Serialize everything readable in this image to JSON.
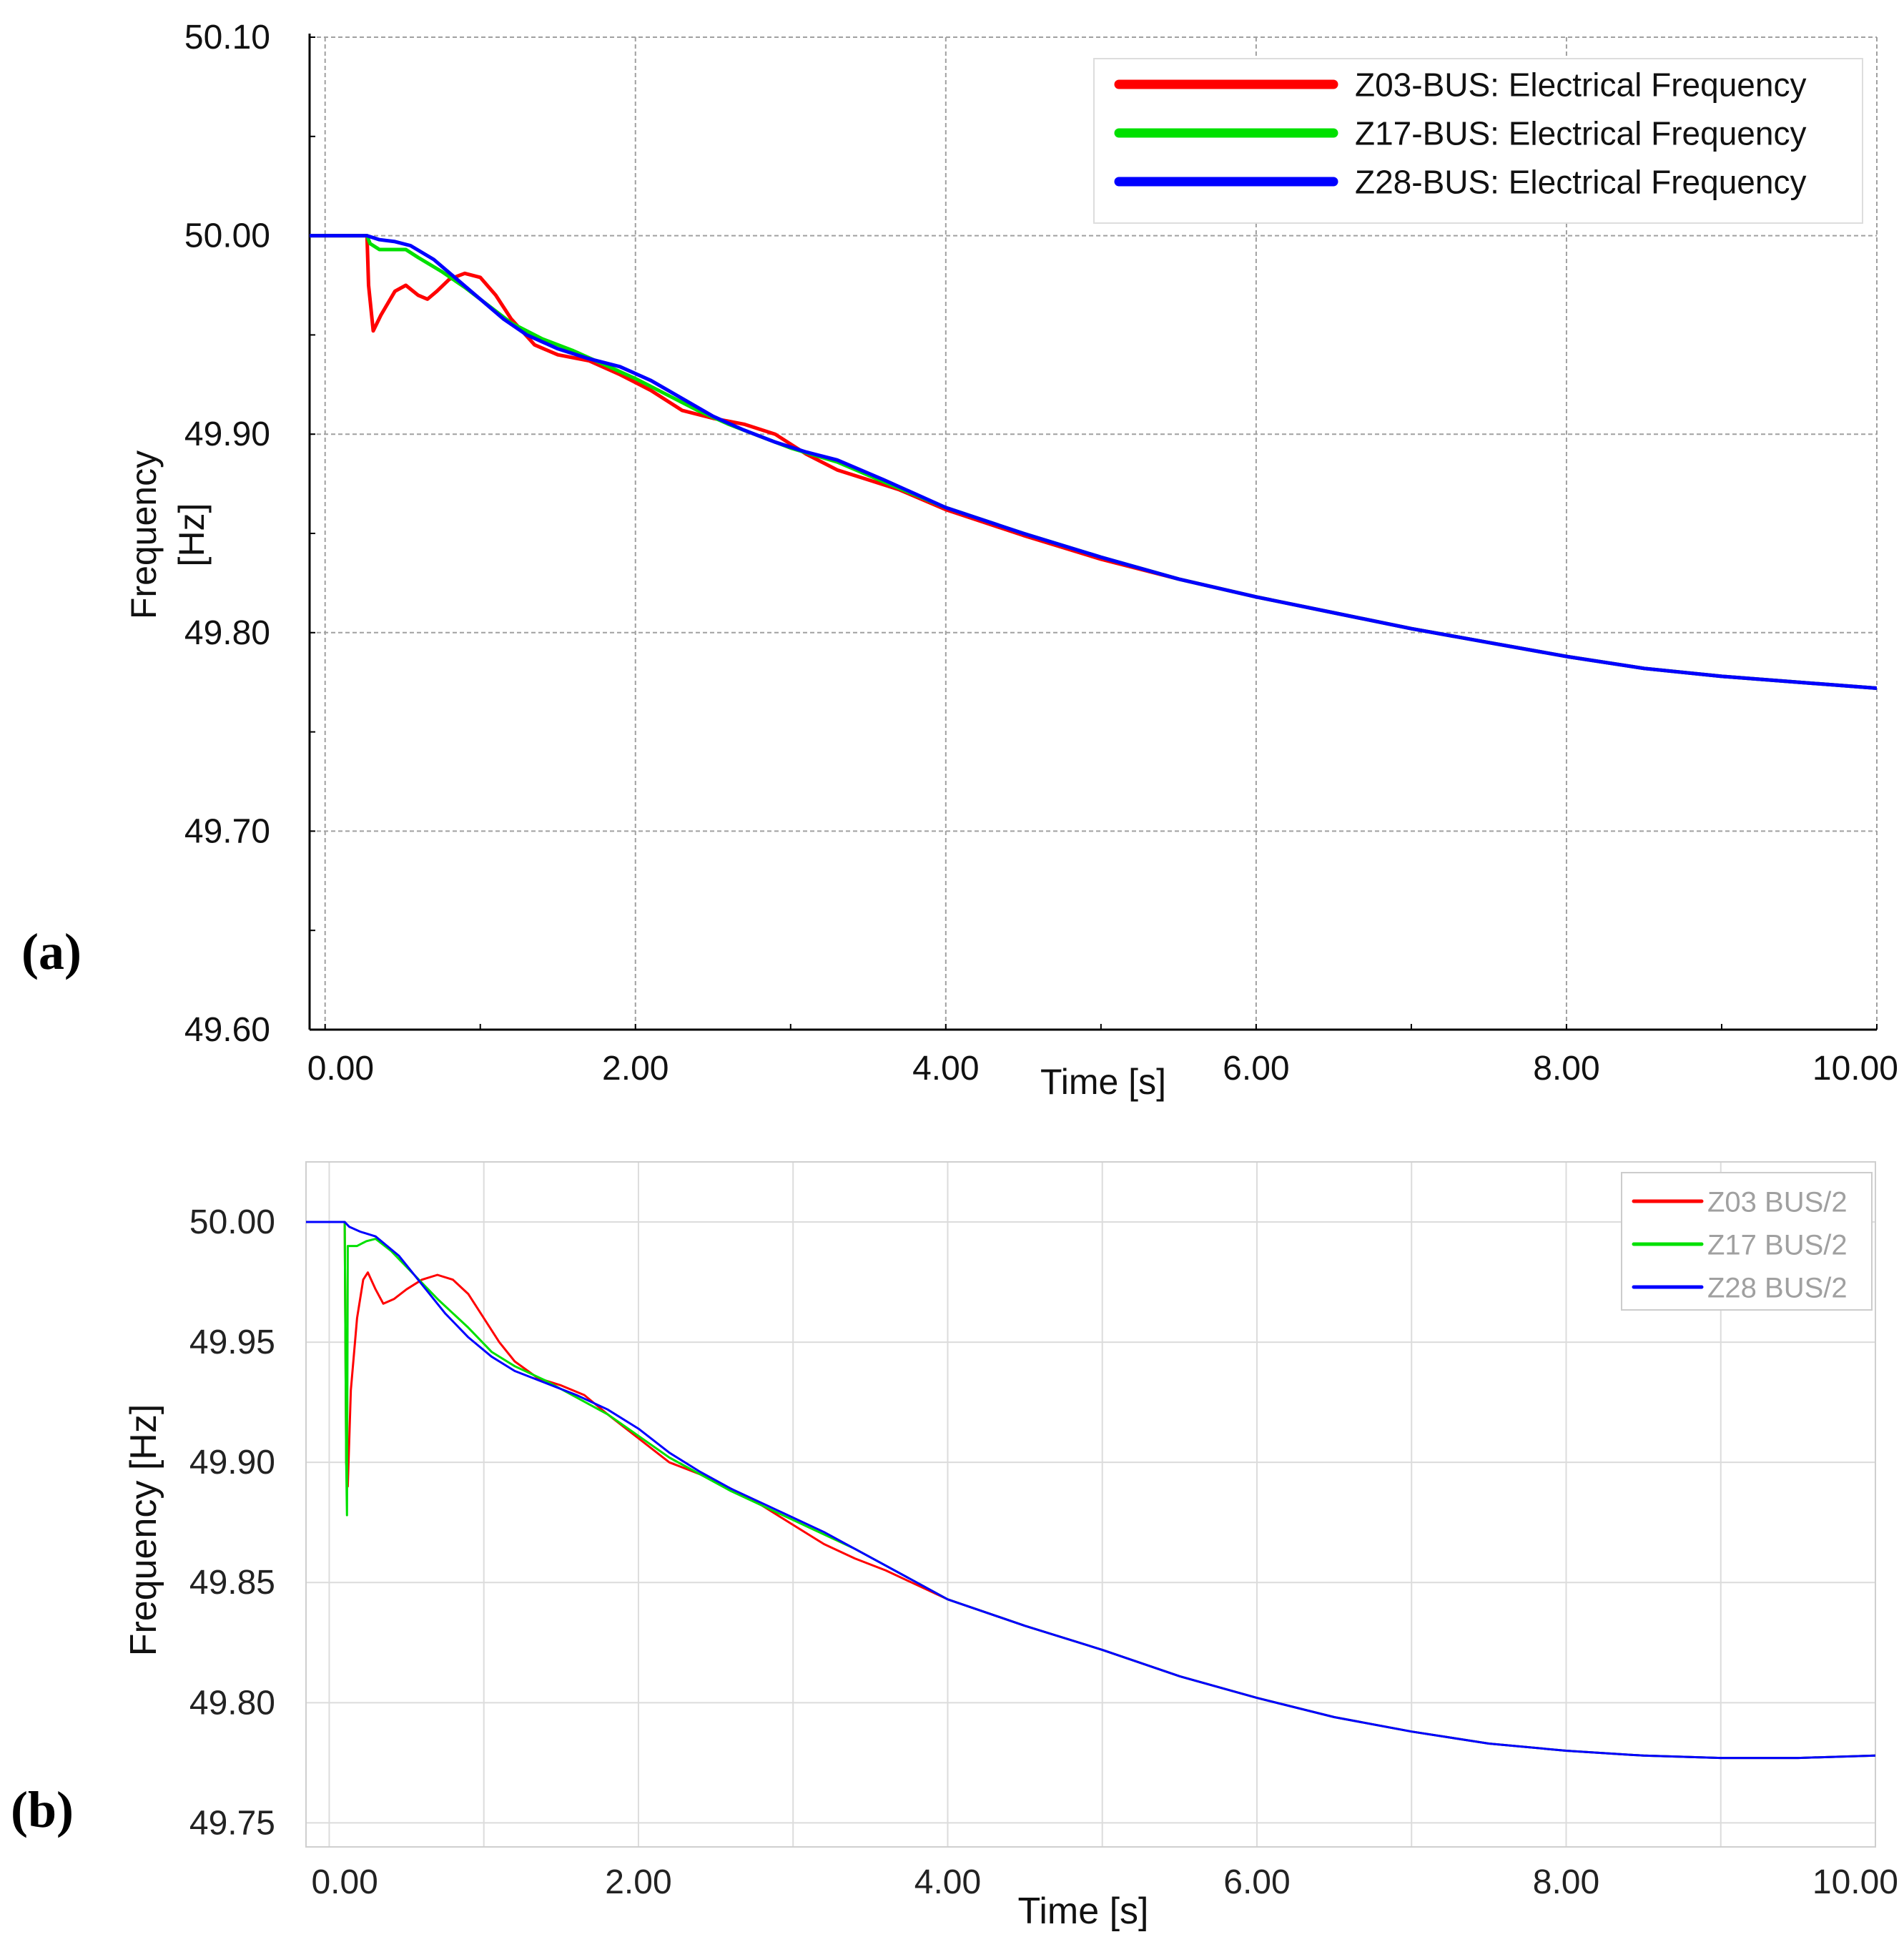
{
  "figure": {
    "panels": [
      "(a)",
      "(b)"
    ]
  },
  "colors": {
    "red": "#ff0000",
    "green": "#00e000",
    "blue": "#0000ff",
    "grid_a": "#a0a0a0",
    "grid_b": "#dcdcdc",
    "axis": "#000000",
    "legend_text_b": "#a0a0a0"
  },
  "chart_data": [
    {
      "id": "a",
      "type": "line",
      "panel_label": "(a)",
      "title": "",
      "xlabel": "Time [s]",
      "ylabel_lines": [
        "Frequency",
        "[Hz]"
      ],
      "xlim": [
        -0.1,
        10.0
      ],
      "ylim": [
        49.6,
        50.1
      ],
      "xticks": [
        0,
        2,
        4,
        6,
        8,
        10
      ],
      "xtick_labels": [
        "0.00",
        "2.00",
        "4.00",
        "6.00",
        "8.00",
        "10.00"
      ],
      "yticks": [
        49.6,
        49.7,
        49.8,
        49.9,
        50.0,
        50.1
      ],
      "ytick_labels": [
        "49.60",
        "49.70",
        "49.80",
        "49.90",
        "50.00",
        "50.10"
      ],
      "grid": true,
      "legend_position": "top-right",
      "series": [
        {
          "name": "Z03-BUS: Electrical Frequency",
          "color_key": "red",
          "points": [
            [
              -0.1,
              50.0
            ],
            [
              0.27,
              50.0
            ],
            [
              0.28,
              49.975
            ],
            [
              0.31,
              49.952
            ],
            [
              0.36,
              49.96
            ],
            [
              0.45,
              49.972
            ],
            [
              0.52,
              49.975
            ],
            [
              0.6,
              49.97
            ],
            [
              0.66,
              49.968
            ],
            [
              0.72,
              49.972
            ],
            [
              0.8,
              49.978
            ],
            [
              0.9,
              49.981
            ],
            [
              1.0,
              49.979
            ],
            [
              1.1,
              49.97
            ],
            [
              1.2,
              49.958
            ],
            [
              1.35,
              49.945
            ],
            [
              1.5,
              49.94
            ],
            [
              1.7,
              49.937
            ],
            [
              1.9,
              49.93
            ],
            [
              2.1,
              49.922
            ],
            [
              2.3,
              49.912
            ],
            [
              2.5,
              49.908
            ],
            [
              2.7,
              49.905
            ],
            [
              2.9,
              49.9
            ],
            [
              3.1,
              49.89
            ],
            [
              3.3,
              49.882
            ],
            [
              3.5,
              49.877
            ],
            [
              3.7,
              49.872
            ],
            [
              4.0,
              49.862
            ],
            [
              4.5,
              49.849
            ],
            [
              5.0,
              49.837
            ],
            [
              5.5,
              49.827
            ],
            [
              6.0,
              49.818
            ],
            [
              6.5,
              49.81
            ],
            [
              7.0,
              49.802
            ],
            [
              7.5,
              49.795
            ],
            [
              8.0,
              49.788
            ],
            [
              8.5,
              49.782
            ],
            [
              9.0,
              49.778
            ],
            [
              9.5,
              49.775
            ],
            [
              10.0,
              49.772
            ]
          ]
        },
        {
          "name": "Z17-BUS: Electrical Frequency",
          "color_key": "green",
          "points": [
            [
              -0.1,
              50.0
            ],
            [
              0.27,
              50.0
            ],
            [
              0.29,
              49.996
            ],
            [
              0.35,
              49.993
            ],
            [
              0.45,
              49.993
            ],
            [
              0.52,
              49.993
            ],
            [
              0.6,
              49.989
            ],
            [
              0.75,
              49.982
            ],
            [
              0.9,
              49.974
            ],
            [
              1.05,
              49.965
            ],
            [
              1.2,
              49.956
            ],
            [
              1.4,
              49.948
            ],
            [
              1.6,
              49.942
            ],
            [
              1.8,
              49.935
            ],
            [
              2.0,
              49.928
            ],
            [
              2.2,
              49.92
            ],
            [
              2.4,
              49.912
            ],
            [
              2.6,
              49.905
            ],
            [
              2.8,
              49.899
            ],
            [
              3.0,
              49.893
            ],
            [
              3.3,
              49.886
            ],
            [
              3.6,
              49.876
            ],
            [
              4.0,
              49.863
            ],
            [
              4.5,
              49.85
            ],
            [
              5.0,
              49.838
            ],
            [
              5.5,
              49.827
            ],
            [
              6.0,
              49.818
            ],
            [
              6.5,
              49.81
            ],
            [
              7.0,
              49.802
            ],
            [
              7.5,
              49.795
            ],
            [
              8.0,
              49.788
            ],
            [
              8.5,
              49.782
            ],
            [
              9.0,
              49.778
            ],
            [
              9.5,
              49.775
            ],
            [
              10.0,
              49.772
            ]
          ]
        },
        {
          "name": "Z28-BUS: Electrical Frequency",
          "color_key": "blue",
          "points": [
            [
              -0.1,
              50.0
            ],
            [
              0.27,
              50.0
            ],
            [
              0.35,
              49.998
            ],
            [
              0.45,
              49.997
            ],
            [
              0.55,
              49.995
            ],
            [
              0.7,
              49.988
            ],
            [
              0.85,
              49.978
            ],
            [
              1.0,
              49.968
            ],
            [
              1.15,
              49.958
            ],
            [
              1.3,
              49.95
            ],
            [
              1.5,
              49.943
            ],
            [
              1.7,
              49.938
            ],
            [
              1.9,
              49.934
            ],
            [
              2.1,
              49.927
            ],
            [
              2.3,
              49.918
            ],
            [
              2.5,
              49.909
            ],
            [
              2.7,
              49.902
            ],
            [
              2.9,
              49.896
            ],
            [
              3.1,
              49.891
            ],
            [
              3.3,
              49.887
            ],
            [
              3.6,
              49.877
            ],
            [
              4.0,
              49.863
            ],
            [
              4.5,
              49.85
            ],
            [
              5.0,
              49.838
            ],
            [
              5.5,
              49.827
            ],
            [
              6.0,
              49.818
            ],
            [
              6.5,
              49.81
            ],
            [
              7.0,
              49.802
            ],
            [
              7.5,
              49.795
            ],
            [
              8.0,
              49.788
            ],
            [
              8.5,
              49.782
            ],
            [
              9.0,
              49.778
            ],
            [
              9.5,
              49.775
            ],
            [
              10.0,
              49.772
            ]
          ]
        }
      ]
    },
    {
      "id": "b",
      "type": "line",
      "panel_label": "(b)",
      "title": "",
      "xlabel": "Time [s]",
      "ylabel_lines": [
        "Frequency [Hz]"
      ],
      "xlim": [
        -0.15,
        10.0
      ],
      "ylim": [
        49.74,
        50.025
      ],
      "xticks": [
        0,
        2,
        4,
        6,
        8,
        10
      ],
      "xtick_labels": [
        "0.00",
        "2.00",
        "4.00",
        "6.00",
        "8.00",
        "10.00"
      ],
      "yticks": [
        49.75,
        49.8,
        49.85,
        49.9,
        49.95,
        50.0
      ],
      "ytick_labels": [
        "49.75",
        "49.80",
        "49.85",
        "49.90",
        "49.95",
        "50.00"
      ],
      "grid": true,
      "legend_position": "top-right",
      "series": [
        {
          "name": "Z03 BUS/2",
          "color_key": "red",
          "points": [
            [
              -0.15,
              50.0
            ],
            [
              0.1,
              50.0
            ],
            [
              0.11,
              49.9
            ],
            [
              0.12,
              49.89
            ],
            [
              0.14,
              49.93
            ],
            [
              0.18,
              49.96
            ],
            [
              0.22,
              49.976
            ],
            [
              0.25,
              49.979
            ],
            [
              0.3,
              49.972
            ],
            [
              0.35,
              49.966
            ],
            [
              0.42,
              49.968
            ],
            [
              0.5,
              49.972
            ],
            [
              0.6,
              49.976
            ],
            [
              0.7,
              49.978
            ],
            [
              0.8,
              49.976
            ],
            [
              0.9,
              49.97
            ],
            [
              1.0,
              49.96
            ],
            [
              1.1,
              49.95
            ],
            [
              1.2,
              49.942
            ],
            [
              1.35,
              49.935
            ],
            [
              1.5,
              49.932
            ],
            [
              1.65,
              49.928
            ],
            [
              1.8,
              49.92
            ],
            [
              2.0,
              49.91
            ],
            [
              2.2,
              49.9
            ],
            [
              2.4,
              49.895
            ],
            [
              2.6,
              49.889
            ],
            [
              2.8,
              49.882
            ],
            [
              3.0,
              49.874
            ],
            [
              3.2,
              49.866
            ],
            [
              3.4,
              49.86
            ],
            [
              3.6,
              49.855
            ],
            [
              4.0,
              49.843
            ],
            [
              4.5,
              49.832
            ],
            [
              5.0,
              49.822
            ],
            [
              5.5,
              49.811
            ],
            [
              6.0,
              49.802
            ],
            [
              6.5,
              49.794
            ],
            [
              7.0,
              49.788
            ],
            [
              7.5,
              49.783
            ],
            [
              8.0,
              49.78
            ],
            [
              8.5,
              49.778
            ],
            [
              9.0,
              49.777
            ],
            [
              9.5,
              49.777
            ],
            [
              10.0,
              49.778
            ]
          ]
        },
        {
          "name": "Z17 BUS/2",
          "color_key": "green",
          "points": [
            [
              -0.15,
              50.0
            ],
            [
              0.1,
              50.0
            ],
            [
              0.11,
              49.9
            ],
            [
              0.115,
              49.878
            ],
            [
              0.12,
              49.99
            ],
            [
              0.18,
              49.99
            ],
            [
              0.24,
              49.992
            ],
            [
              0.3,
              49.993
            ],
            [
              0.4,
              49.988
            ],
            [
              0.55,
              49.978
            ],
            [
              0.7,
              49.968
            ],
            [
              0.9,
              49.956
            ],
            [
              1.05,
              49.946
            ],
            [
              1.2,
              49.94
            ],
            [
              1.4,
              49.934
            ],
            [
              1.6,
              49.927
            ],
            [
              1.8,
              49.92
            ],
            [
              2.0,
              49.911
            ],
            [
              2.2,
              49.902
            ],
            [
              2.4,
              49.895
            ],
            [
              2.6,
              49.888
            ],
            [
              2.8,
              49.882
            ],
            [
              3.0,
              49.876
            ],
            [
              3.2,
              49.87
            ],
            [
              3.4,
              49.864
            ],
            [
              3.6,
              49.857
            ],
            [
              4.0,
              49.843
            ],
            [
              4.5,
              49.832
            ],
            [
              5.0,
              49.822
            ],
            [
              5.5,
              49.811
            ],
            [
              6.0,
              49.802
            ],
            [
              6.5,
              49.794
            ],
            [
              7.0,
              49.788
            ],
            [
              7.5,
              49.783
            ],
            [
              8.0,
              49.78
            ],
            [
              8.5,
              49.778
            ],
            [
              9.0,
              49.777
            ],
            [
              9.5,
              49.777
            ],
            [
              10.0,
              49.778
            ]
          ]
        },
        {
          "name": "Z28 BUS/2",
          "color_key": "blue",
          "points": [
            [
              -0.15,
              50.0
            ],
            [
              0.1,
              50.0
            ],
            [
              0.13,
              49.998
            ],
            [
              0.2,
              49.996
            ],
            [
              0.3,
              49.994
            ],
            [
              0.45,
              49.986
            ],
            [
              0.6,
              49.974
            ],
            [
              0.75,
              49.962
            ],
            [
              0.9,
              49.952
            ],
            [
              1.05,
              49.944
            ],
            [
              1.2,
              49.938
            ],
            [
              1.4,
              49.933
            ],
            [
              1.6,
              49.928
            ],
            [
              1.8,
              49.922
            ],
            [
              2.0,
              49.914
            ],
            [
              2.2,
              49.904
            ],
            [
              2.4,
              49.896
            ],
            [
              2.6,
              49.889
            ],
            [
              2.8,
              49.883
            ],
            [
              3.0,
              49.877
            ],
            [
              3.2,
              49.871
            ],
            [
              3.4,
              49.864
            ],
            [
              3.6,
              49.857
            ],
            [
              4.0,
              49.843
            ],
            [
              4.5,
              49.832
            ],
            [
              5.0,
              49.822
            ],
            [
              5.5,
              49.811
            ],
            [
              6.0,
              49.802
            ],
            [
              6.5,
              49.794
            ],
            [
              7.0,
              49.788
            ],
            [
              7.5,
              49.783
            ],
            [
              8.0,
              49.78
            ],
            [
              8.5,
              49.778
            ],
            [
              9.0,
              49.777
            ],
            [
              9.5,
              49.777
            ],
            [
              10.0,
              49.778
            ]
          ]
        }
      ]
    }
  ]
}
